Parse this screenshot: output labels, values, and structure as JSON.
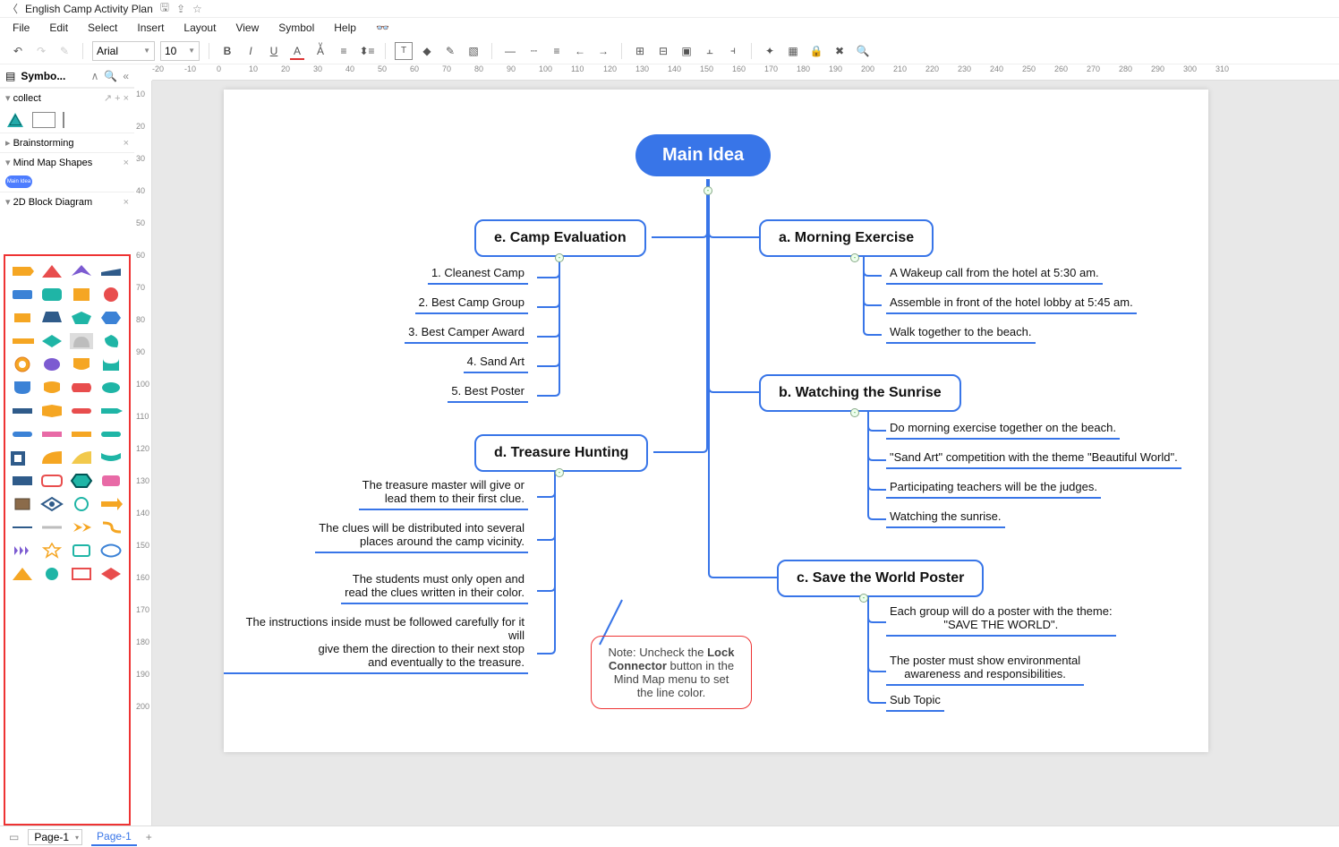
{
  "title": {
    "doc": "English Camp Activity Plan"
  },
  "menu": {
    "file": "File",
    "edit": "Edit",
    "select": "Select",
    "insert": "Insert",
    "layout": "Layout",
    "view": "View",
    "symbol": "Symbol",
    "help": "Help"
  },
  "toolbar": {
    "font": "Arial",
    "size": "10"
  },
  "side": {
    "label": "Symbo...",
    "collect": "collect",
    "brainstorm": "Brainstorming",
    "mindmap": "Mind Map Shapes",
    "block": "2D Block Diagram"
  },
  "ruler": {
    "h": [
      "-20",
      "-10",
      "0",
      "10",
      "20",
      "30",
      "40",
      "50",
      "60",
      "70",
      "80",
      "90",
      "100",
      "110",
      "120",
      "130",
      "140",
      "150",
      "160",
      "170",
      "180",
      "190",
      "200",
      "210",
      "220",
      "230",
      "240",
      "250",
      "260",
      "270",
      "280",
      "290",
      "300",
      "310"
    ],
    "v": [
      "10",
      "20",
      "30",
      "40",
      "50",
      "60",
      "70",
      "80",
      "90",
      "100",
      "110",
      "120",
      "130",
      "140",
      "150",
      "160",
      "170",
      "180",
      "190",
      "200"
    ]
  },
  "mindmap": {
    "main": "Main Idea",
    "left": {
      "e": {
        "title": "e. Camp Evaluation",
        "items": [
          "1. Cleanest Camp",
          "2. Best Camp Group",
          "3. Best Camper Award",
          "4. Sand Art",
          "5. Best Poster"
        ]
      },
      "d": {
        "title": "d. Treasure Hunting",
        "items": [
          "The treasure master will give or\nlead them to their first clue.",
          "The clues will be distributed into several\nplaces around the camp vicinity.",
          "The students must only open and\nread the clues written in their color.",
          "The instructions inside must be followed carefully for it will\ngive them the direction to their next stop\nand eventually to the treasure."
        ]
      }
    },
    "right": {
      "a": {
        "title": "a. Morning Exercise",
        "items": [
          "A Wakeup call from the hotel at 5:30 am.",
          "Assemble in front of the hotel lobby at 5:45 am.",
          "Walk together to the beach."
        ]
      },
      "b": {
        "title": "b. Watching the Sunrise",
        "items": [
          "Do morning exercise together on the beach.",
          "\"Sand Art\" competition with the theme \"Beautiful World\".",
          "Participating teachers will be the judges.",
          "Watching the sunrise."
        ]
      },
      "c": {
        "title": "c. Save the World Poster",
        "items": [
          "Each group will do a poster with the theme:\n\"SAVE THE WORLD\".",
          "The poster must show environmental\nawareness and responsibilities.",
          "Sub Topic"
        ]
      }
    },
    "note_pre": "Note: Uncheck the ",
    "note_bold": "Lock Connector",
    "note_post": " button in the Mind Map menu to set the line color."
  },
  "status": {
    "page_sel": "Page-1",
    "tab": "Page-1"
  },
  "shape_colors": {
    "orange": "#f5a623",
    "darkOrange": "#e07b1f",
    "red": "#e84d4d",
    "teal": "#1fb5a6",
    "blue": "#3b82d6",
    "purple": "#7c5bd1",
    "navy": "#2f5b8a",
    "green": "#4caf50",
    "yellow": "#f2c94c",
    "gray": "#bdbdbd",
    "pink": "#e86aa6",
    "brown": "#8b6b4a"
  }
}
